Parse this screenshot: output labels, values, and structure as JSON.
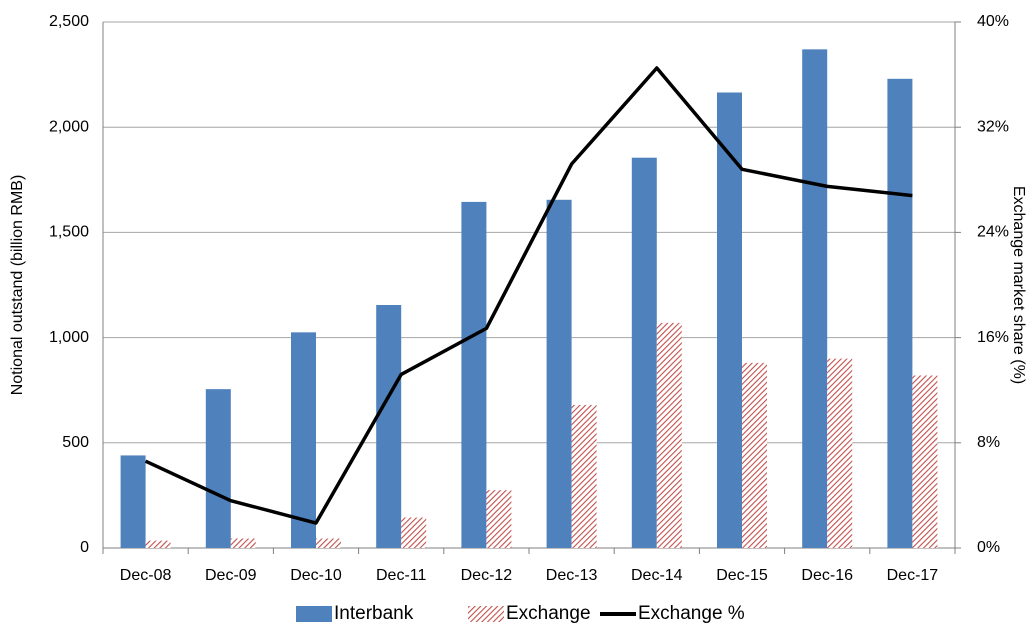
{
  "chart_data": {
    "type": "bar-line",
    "categories": [
      "Dec-08",
      "Dec-09",
      "Dec-10",
      "Dec-11",
      "Dec-12",
      "Dec-13",
      "Dec-14",
      "Dec-15",
      "Dec-16",
      "Dec-17"
    ],
    "series": [
      {
        "name": "Interbank",
        "type": "bar",
        "color": "#4f81bd",
        "values": [
          440,
          755,
          1025,
          1155,
          1645,
          1655,
          1855,
          2165,
          2370,
          2230
        ]
      },
      {
        "name": "Exchange",
        "type": "bar",
        "color": "#c0504d",
        "pattern": "hatch",
        "values": [
          35,
          45,
          45,
          145,
          275,
          680,
          1070,
          880,
          900,
          820
        ]
      },
      {
        "name": "Exchange %",
        "type": "line",
        "color": "#000000",
        "axis": "y2",
        "values": [
          6.6,
          3.6,
          1.9,
          13.2,
          16.7,
          29.2,
          36.5,
          28.8,
          27.5,
          26.8
        ]
      }
    ],
    "ylabel": "Notional outstand (billion RMB)",
    "y2label": "Exchange market share (%)",
    "ylim": [
      0,
      2500
    ],
    "yticks": [
      0,
      500,
      {
        "value": 1000,
        "label": "1,000"
      },
      {
        "value": 1500,
        "label": "1,500"
      },
      {
        "value": 2000,
        "label": "2,000"
      },
      {
        "value": 2500,
        "label": "2,500"
      }
    ],
    "y2lim": [
      0,
      40
    ],
    "y2ticks": [
      {
        "value": 0,
        "label": "0%"
      },
      {
        "value": 8,
        "label": "8%"
      },
      {
        "value": 16,
        "label": "16%"
      },
      {
        "value": 24,
        "label": "24%"
      },
      {
        "value": 32,
        "label": "32%"
      },
      {
        "value": 40,
        "label": "40%"
      }
    ],
    "grid": true
  }
}
